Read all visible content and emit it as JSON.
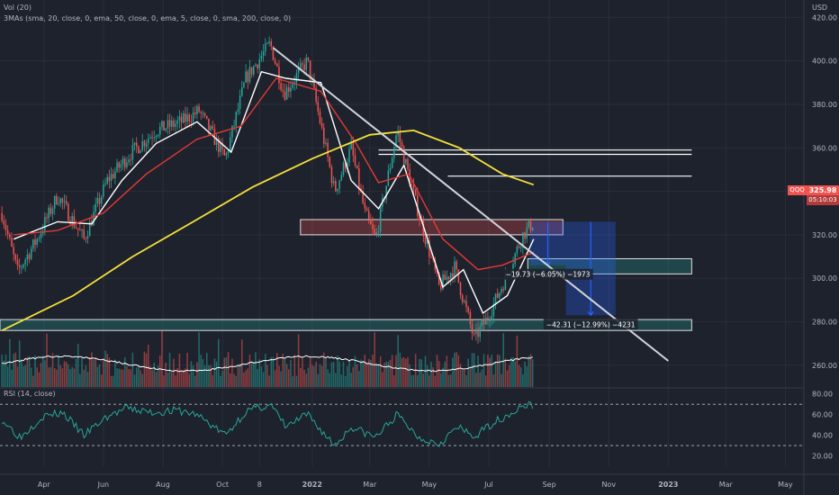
{
  "header": {
    "volume_label": "Vol (20)",
    "indicator_label": "3MAs (sma, 20, close, 0, ema, 50, close, 0, ema, 5, close, 0, sma, 200, close, 0)",
    "rsi_label": "RSI (14, close)"
  },
  "symbol_tag": "QQQ",
  "price_tag": {
    "value": "325.98",
    "countdown": "05:10:03"
  },
  "colors": {
    "background": "#1e222d",
    "candle_up": "#26a69a",
    "candle_down": "#ef5350",
    "sma20": "#ffffff",
    "ema50": "#e53935",
    "sma200": "#f5e03b",
    "rsi": "#26a69a",
    "resistance_zone": "#ef5350",
    "support_zone": "#26a69a",
    "projection": "#2962ff"
  },
  "chart_data": {
    "type": "line",
    "currency": "USD",
    "symbol": "QQQ",
    "x_ticks": [
      "Apr",
      "Jun",
      "Aug",
      "Oct",
      "8",
      "2022",
      "Mar",
      "May",
      "Jul",
      "Sep",
      "Nov",
      "2023",
      "Mar",
      "May"
    ],
    "y_ticks": [
      260,
      280,
      300,
      320,
      340,
      360,
      380,
      400,
      420
    ],
    "ylim": [
      250,
      428
    ],
    "time_axis": {
      "start": "2021-02-15",
      "end": "2023-05-20"
    },
    "price_series": {
      "name": "QQQ",
      "x": [
        "2021-02-17",
        "2021-03-05",
        "2021-03-25",
        "2021-04-15",
        "2021-05-12",
        "2021-06-05",
        "2021-06-30",
        "2021-07-25",
        "2021-08-20",
        "2021-09-07",
        "2021-10-04",
        "2021-10-25",
        "2021-11-19",
        "2021-12-03",
        "2021-12-27",
        "2022-01-24",
        "2022-02-10",
        "2022-02-24",
        "2022-03-07",
        "2022-03-29",
        "2022-04-20",
        "2022-05-11",
        "2022-05-27",
        "2022-06-16",
        "2022-06-30",
        "2022-07-20",
        "2022-08-05",
        "2022-08-16"
      ],
      "values": [
        330,
        303,
        318,
        338,
        318,
        345,
        358,
        368,
        372,
        377,
        355,
        392,
        408,
        385,
        400,
        340,
        360,
        330,
        318,
        368,
        330,
        296,
        305,
        272,
        282,
        302,
        320,
        326
      ]
    },
    "moving_averages": [
      {
        "name": "sma 20",
        "x": [
          "2021-03-01",
          "2021-04-15",
          "2021-05-20",
          "2021-06-20",
          "2021-07-25",
          "2021-09-05",
          "2021-10-10",
          "2021-11-10",
          "2021-12-05",
          "2022-01-10",
          "2022-02-10",
          "2022-03-10",
          "2022-04-05",
          "2022-05-15",
          "2022-06-05",
          "2022-06-25",
          "2022-07-20",
          "2022-08-16"
        ],
        "values": [
          318,
          326,
          325,
          345,
          362,
          372,
          358,
          395,
          392,
          390,
          345,
          332,
          352,
          296,
          304,
          284,
          292,
          318
        ]
      },
      {
        "name": "ema 50",
        "x": [
          "2021-03-01",
          "2021-04-15",
          "2021-06-01",
          "2021-07-15",
          "2021-09-05",
          "2021-10-20",
          "2021-11-25",
          "2022-01-10",
          "2022-02-15",
          "2022-03-10",
          "2022-04-10",
          "2022-05-15",
          "2022-06-20",
          "2022-07-15",
          "2022-08-16"
        ],
        "values": [
          320,
          322,
          330,
          348,
          364,
          370,
          392,
          386,
          362,
          344,
          348,
          318,
          304,
          306,
          312
        ]
      },
      {
        "name": "sma 200",
        "x": [
          "2021-02-17",
          "2021-05-01",
          "2021-07-01",
          "2021-09-01",
          "2021-11-01",
          "2022-01-01",
          "2022-03-01",
          "2022-04-15",
          "2022-06-01",
          "2022-07-15",
          "2022-08-16"
        ],
        "values": [
          276,
          292,
          310,
          326,
          342,
          355,
          366,
          368,
          360,
          348,
          343
        ]
      }
    ],
    "volume": {
      "label": "Vol (20)",
      "start": "2021-02-17",
      "end": "2022-08-16"
    },
    "rsi": {
      "label": "RSI (14, close)",
      "y_ticks": [
        20,
        40,
        60,
        80
      ],
      "ylim": [
        10,
        85
      ],
      "bands": [
        70,
        30
      ],
      "x": [
        "2021-02-17",
        "2021-03-08",
        "2021-03-30",
        "2021-04-20",
        "2021-05-12",
        "2021-06-05",
        "2021-06-25",
        "2021-07-20",
        "2021-08-15",
        "2021-09-05",
        "2021-10-04",
        "2021-10-25",
        "2021-11-19",
        "2021-12-05",
        "2021-12-27",
        "2022-01-24",
        "2022-02-10",
        "2022-03-07",
        "2022-03-29",
        "2022-04-20",
        "2022-05-11",
        "2022-05-30",
        "2022-06-16",
        "2022-07-05",
        "2022-07-25",
        "2022-08-10",
        "2022-08-16"
      ],
      "values": [
        55,
        38,
        58,
        62,
        40,
        58,
        66,
        62,
        64,
        60,
        40,
        63,
        70,
        48,
        60,
        30,
        48,
        38,
        60,
        38,
        32,
        48,
        38,
        52,
        62,
        70,
        68
      ]
    },
    "annotations": [
      {
        "type": "trendline",
        "x1": "2021-11-22",
        "y1": 406,
        "x2": "2023-01-01",
        "y2": 262
      },
      {
        "type": "zone",
        "label": "resistance",
        "x1": "2021-12-20",
        "x2": "2022-09-15",
        "y1": 320,
        "y2": 327
      },
      {
        "type": "zone",
        "label": "support",
        "x1": "2022-08-10",
        "x2": "2023-01-25",
        "y1": 302,
        "y2": 309
      },
      {
        "type": "zone",
        "label": "support",
        "x1": "2021-02-15",
        "x2": "2023-01-25",
        "y1": 276,
        "y2": 281
      },
      {
        "type": "level",
        "x1": "2022-03-10",
        "x2": "2023-01-25",
        "y": 357
      },
      {
        "type": "level",
        "x1": "2022-03-10",
        "x2": "2023-01-25",
        "y": 359
      },
      {
        "type": "level",
        "x1": "2022-05-20",
        "x2": "2023-01-25",
        "y": 347
      },
      {
        "type": "measure",
        "x1": "2022-08-12",
        "x2": "2022-09-18",
        "from": 326,
        "to": 306,
        "label": "−19.73 (−6.05%) −1973"
      },
      {
        "type": "measure",
        "x1": "2022-09-18",
        "x2": "2022-11-08",
        "from": 326,
        "to": 283,
        "label": "−42.31 (−12.99%) −4231"
      }
    ],
    "grid": true,
    "legend": "top-left"
  }
}
